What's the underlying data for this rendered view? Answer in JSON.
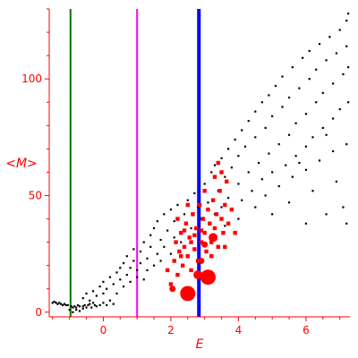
{
  "chart_data": {
    "type": "scatter",
    "title": "",
    "xlabel": "E",
    "ylabel": "<M>",
    "xlim": [
      -1.6,
      7.3
    ],
    "ylim": [
      -2,
      130
    ],
    "grid": false,
    "legend": "none",
    "colors": {
      "axes": "#ff0000",
      "black_points": "#000000",
      "red_points": "#ff0000",
      "line_green": "#007700",
      "line_magenta": "#ff00ff",
      "line_blue": "#0000ff"
    },
    "xticks": [
      {
        "value": 0,
        "label": "0"
      },
      {
        "value": 2,
        "label": "2"
      },
      {
        "value": 4,
        "label": "4"
      },
      {
        "value": 6,
        "label": "6"
      }
    ],
    "yticks": [
      {
        "value": 0,
        "label": "0"
      },
      {
        "value": 50,
        "label": "50"
      },
      {
        "value": 100,
        "label": "100"
      }
    ],
    "vertical_lines": [
      {
        "x": -0.97,
        "color": "#007700",
        "width": 2
      },
      {
        "x": 1.0,
        "color": "#ff00ff",
        "width": 2
      },
      {
        "x": 2.83,
        "color": "#0000ff",
        "width": 4
      }
    ],
    "series": [
      {
        "color": "#000000",
        "marker_size": 1.1,
        "points": [
          [
            -1.5,
            4
          ],
          [
            -1.45,
            4.5
          ],
          [
            -1.4,
            4
          ],
          [
            -1.35,
            3.5
          ],
          [
            -1.3,
            4
          ],
          [
            -1.25,
            3.5
          ],
          [
            -1.2,
            3
          ],
          [
            -1.15,
            3.5
          ],
          [
            -1.1,
            3
          ],
          [
            -1.05,
            3
          ],
          [
            -0.95,
            2.5
          ],
          [
            -0.9,
            2
          ],
          [
            -0.85,
            2.5
          ],
          [
            -0.8,
            2
          ],
          [
            -0.75,
            3
          ],
          [
            -0.7,
            2.5
          ],
          [
            -0.6,
            2.5
          ],
          [
            -0.55,
            3
          ],
          [
            -0.5,
            2
          ],
          [
            -0.45,
            3
          ],
          [
            -0.4,
            3.5
          ],
          [
            -0.35,
            2
          ],
          [
            -0.3,
            4
          ],
          [
            -0.25,
            3
          ],
          [
            -0.2,
            2.5
          ],
          [
            -0.1,
            3
          ],
          [
            0,
            4
          ],
          [
            0.1,
            3
          ],
          [
            0.2,
            5
          ],
          [
            0.3,
            3.5
          ],
          [
            -1.0,
            1
          ],
          [
            -0.9,
            0
          ],
          [
            -0.8,
            1
          ],
          [
            -0.7,
            0.5
          ],
          [
            -0.6,
            1.5
          ],
          [
            -0.6,
            6
          ],
          [
            -0.5,
            8
          ],
          [
            -0.4,
            5
          ],
          [
            -0.3,
            9
          ],
          [
            -0.2,
            7
          ],
          [
            -0.1,
            11
          ],
          [
            0,
            8
          ],
          [
            0,
            13
          ],
          [
            0.1,
            10
          ],
          [
            0.2,
            15
          ],
          [
            0.3,
            12
          ],
          [
            0.4,
            17
          ],
          [
            0.4,
            8
          ],
          [
            0.5,
            14
          ],
          [
            0.5,
            19
          ],
          [
            0.6,
            11
          ],
          [
            0.6,
            21
          ],
          [
            0.7,
            16
          ],
          [
            0.7,
            24
          ],
          [
            0.8,
            13
          ],
          [
            0.8,
            19
          ],
          [
            0.9,
            22
          ],
          [
            0.9,
            27
          ],
          [
            1.0,
            15
          ],
          [
            1.0,
            18
          ],
          [
            1.1,
            21
          ],
          [
            1.1,
            26
          ],
          [
            1.2,
            14
          ],
          [
            1.2,
            30
          ],
          [
            1.3,
            18
          ],
          [
            1.3,
            23
          ],
          [
            1.4,
            28
          ],
          [
            1.4,
            33
          ],
          [
            1.5,
            20
          ],
          [
            1.5,
            36
          ],
          [
            1.6,
            25
          ],
          [
            1.6,
            39
          ],
          [
            1.7,
            22
          ],
          [
            1.7,
            31
          ],
          [
            1.8,
            28
          ],
          [
            1.8,
            42
          ],
          [
            1.9,
            35
          ],
          [
            2.0,
            25
          ],
          [
            2.0,
            44
          ],
          [
            2.1,
            32
          ],
          [
            2.1,
            39
          ],
          [
            2.2,
            46
          ],
          [
            2.3,
            30
          ],
          [
            2.4,
            42
          ],
          [
            2.5,
            48
          ],
          [
            2.6,
            36
          ],
          [
            2.7,
            51
          ],
          [
            2.8,
            45
          ],
          [
            2.9,
            40
          ],
          [
            3.0,
            55
          ],
          [
            3.1,
            47
          ],
          [
            3.2,
            60
          ],
          [
            3.3,
            42
          ],
          [
            3.3,
            63
          ],
          [
            3.4,
            52
          ],
          [
            3.5,
            66
          ],
          [
            3.5,
            45
          ],
          [
            3.6,
            58
          ],
          [
            3.7,
            70
          ],
          [
            3.7,
            49
          ],
          [
            3.8,
            62
          ],
          [
            3.9,
            74
          ],
          [
            4.0,
            55
          ],
          [
            4.0,
            67
          ],
          [
            4.1,
            78
          ],
          [
            4.1,
            48
          ],
          [
            4.2,
            71
          ],
          [
            4.3,
            60
          ],
          [
            4.3,
            82
          ],
          [
            4.4,
            52
          ],
          [
            4.5,
            75
          ],
          [
            4.5,
            86
          ],
          [
            4.6,
            64
          ],
          [
            4.7,
            90
          ],
          [
            4.7,
            57
          ],
          [
            4.8,
            79
          ],
          [
            4.9,
            68
          ],
          [
            4.9,
            93
          ],
          [
            5.0,
            60
          ],
          [
            5.0,
            84
          ],
          [
            5.1,
            97
          ],
          [
            5.2,
            72
          ],
          [
            5.3,
            88
          ],
          [
            5.3,
            101
          ],
          [
            5.4,
            63
          ],
          [
            5.5,
            76
          ],
          [
            5.5,
            92
          ],
          [
            5.6,
            105
          ],
          [
            5.7,
            67
          ],
          [
            5.7,
            81
          ],
          [
            5.8,
            96
          ],
          [
            5.9,
            109
          ],
          [
            6.0,
            71
          ],
          [
            6.0,
            85
          ],
          [
            6.1,
            100
          ],
          [
            6.1,
            112
          ],
          [
            6.2,
            75
          ],
          [
            6.3,
            90
          ],
          [
            6.3,
            104
          ],
          [
            6.4,
            115
          ],
          [
            6.5,
            79
          ],
          [
            6.5,
            94
          ],
          [
            6.6,
            108
          ],
          [
            6.7,
            118
          ],
          [
            6.8,
            83
          ],
          [
            6.8,
            98
          ],
          [
            6.9,
            111
          ],
          [
            7.0,
            121
          ],
          [
            7.0,
            87
          ],
          [
            7.1,
            102
          ],
          [
            7.2,
            114
          ],
          [
            7.2,
            125
          ],
          [
            7.25,
            90
          ],
          [
            7.25,
            105
          ],
          [
            7.25,
            128
          ],
          [
            4.5,
            45
          ],
          [
            4.8,
            50
          ],
          [
            5.2,
            54
          ],
          [
            5.6,
            58
          ],
          [
            6.0,
            61
          ],
          [
            6.4,
            65
          ],
          [
            6.8,
            69
          ],
          [
            7.2,
            72
          ],
          [
            4.0,
            40
          ],
          [
            3.6,
            37
          ],
          [
            5.0,
            42
          ],
          [
            5.5,
            47
          ],
          [
            6.2,
            52
          ],
          [
            6.9,
            56
          ],
          [
            7.1,
            45
          ],
          [
            6.6,
            42
          ],
          [
            6.0,
            38
          ],
          [
            7.2,
            38
          ],
          [
            5.8,
            64
          ],
          [
            6.6,
            76
          ]
        ]
      },
      {
        "color": "#ff0000",
        "marker_size": 2.2,
        "points": [
          [
            1.9,
            18
          ],
          [
            2.0,
            12
          ],
          [
            2.1,
            22
          ],
          [
            2.15,
            30
          ],
          [
            2.2,
            16
          ],
          [
            2.25,
            26
          ],
          [
            2.3,
            34
          ],
          [
            2.35,
            20
          ],
          [
            2.4,
            28
          ],
          [
            2.45,
            38
          ],
          [
            2.5,
            24
          ],
          [
            2.55,
            32
          ],
          [
            2.6,
            18
          ],
          [
            2.65,
            42
          ],
          [
            2.7,
            27
          ],
          [
            2.75,
            36
          ],
          [
            2.8,
            22
          ],
          [
            2.85,
            46
          ],
          [
            2.9,
            30
          ],
          [
            2.95,
            40
          ],
          [
            3.0,
            34
          ],
          [
            3.05,
            26
          ],
          [
            3.1,
            44
          ],
          [
            3.15,
            38
          ],
          [
            3.2,
            30
          ],
          [
            3.25,
            48
          ],
          [
            3.3,
            36
          ],
          [
            3.35,
            42
          ],
          [
            3.4,
            28
          ],
          [
            3.45,
            52
          ],
          [
            3.5,
            40
          ],
          [
            3.55,
            34
          ],
          [
            3.6,
            46
          ],
          [
            3.65,
            56
          ],
          [
            3.7,
            38
          ],
          [
            3.4,
            64
          ],
          [
            3.5,
            60
          ],
          [
            3.3,
            58
          ],
          [
            3.0,
            52
          ],
          [
            2.9,
            35
          ],
          [
            3.2,
            24
          ],
          [
            2.6,
            30
          ],
          [
            2.4,
            35
          ],
          [
            2.2,
            40
          ],
          [
            2.5,
            46
          ],
          [
            3.6,
            28
          ],
          [
            3.8,
            44
          ],
          [
            3.9,
            34
          ],
          [
            2.3,
            24
          ],
          [
            2.7,
            33
          ]
        ]
      }
    ],
    "large_markers": [
      {
        "x": 2.5,
        "y": 8,
        "size": "large"
      },
      {
        "x": 3.1,
        "y": 15,
        "size": "large"
      },
      {
        "x": 2.8,
        "y": 16,
        "size": "medium"
      },
      {
        "x": 2.05,
        "y": 10,
        "size": "small"
      },
      {
        "x": 3.25,
        "y": 32,
        "size": "medium"
      },
      {
        "x": 3.0,
        "y": 29,
        "size": "small"
      },
      {
        "x": 2.9,
        "y": 22,
        "size": "small"
      }
    ]
  }
}
